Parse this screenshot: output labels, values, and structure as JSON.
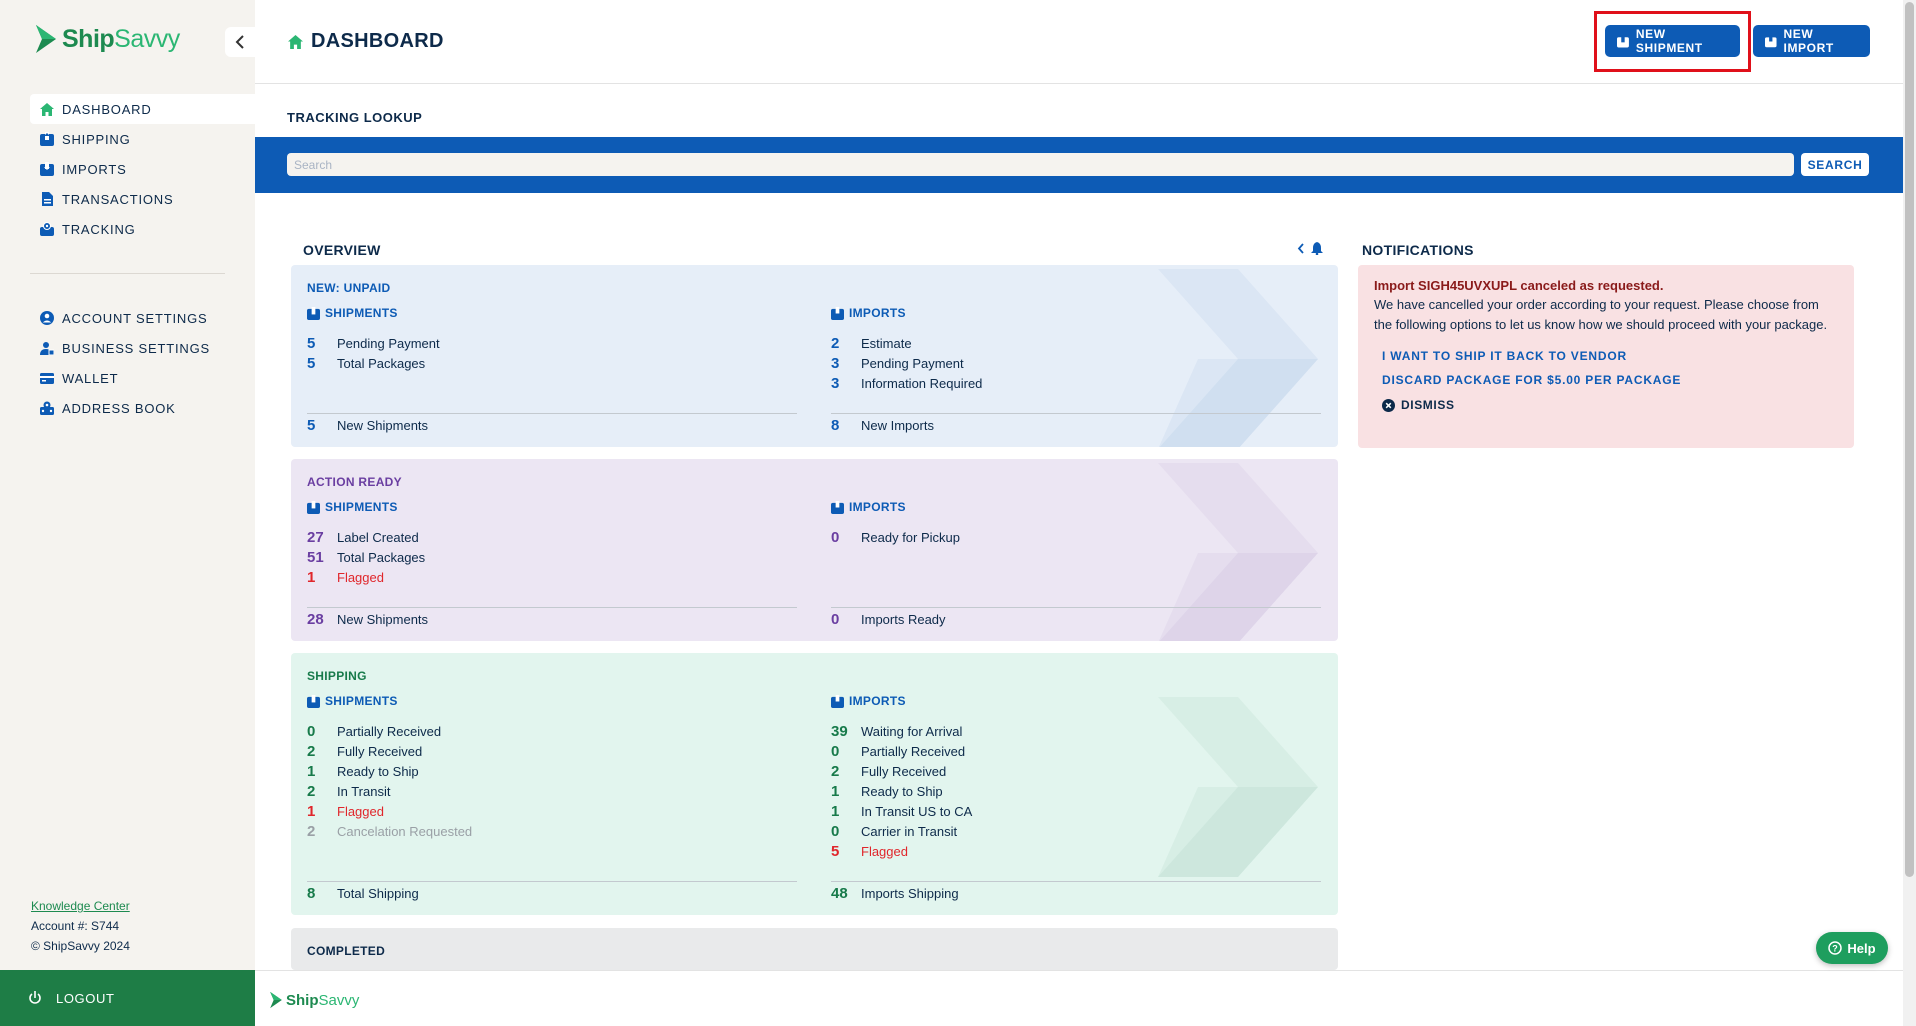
{
  "brand": {
    "logo_ship": "Ship",
    "logo_savvy": "Savvy",
    "accent": "#1e7d46",
    "primary": "#0d5bb5"
  },
  "sidebar": {
    "collapse_icon": "chevron-left-icon",
    "main_items": [
      {
        "label": "DASHBOARD",
        "icon": "home-icon",
        "active": true
      },
      {
        "label": "SHIPPING",
        "icon": "package-icon"
      },
      {
        "label": "IMPORTS",
        "icon": "import-icon"
      },
      {
        "label": "TRANSACTIONS",
        "icon": "document-icon"
      },
      {
        "label": "TRACKING",
        "icon": "tracking-icon"
      }
    ],
    "settings_items": [
      {
        "label": "ACCOUNT SETTINGS",
        "icon": "user-circle-icon"
      },
      {
        "label": "BUSINESS SETTINGS",
        "icon": "business-icon"
      },
      {
        "label": "WALLET",
        "icon": "wallet-icon"
      },
      {
        "label": "ADDRESS BOOK",
        "icon": "address-book-icon"
      }
    ],
    "knowledge_center": "Knowledge Center",
    "account": "Account #: S744",
    "copyright": "© ShipSavvy 2024",
    "logout": "LOGOUT"
  },
  "header": {
    "title": "DASHBOARD",
    "new_shipment": "NEW SHIPMENT",
    "new_import": "NEW IMPORT"
  },
  "tracking": {
    "title": "TRACKING LOOKUP",
    "placeholder": "Search",
    "search_button": "SEARCH"
  },
  "overview": {
    "title": "OVERVIEW",
    "cards": {
      "unpaid": {
        "label": "NEW: UNPAID",
        "shipments_head": "SHIPMENTS",
        "imports_head": "IMPORTS",
        "shipments": [
          {
            "num": "5",
            "label": "Pending Payment"
          },
          {
            "num": "5",
            "label": "Total Packages"
          }
        ],
        "imports": [
          {
            "num": "2",
            "label": "Estimate"
          },
          {
            "num": "3",
            "label": "Pending Payment"
          },
          {
            "num": "3",
            "label": "Information Required"
          }
        ],
        "ship_total": {
          "num": "5",
          "label": "New Shipments"
        },
        "import_total": {
          "num": "8",
          "label": "New Imports"
        }
      },
      "action": {
        "label": "ACTION READY",
        "shipments_head": "SHIPMENTS",
        "imports_head": "IMPORTS",
        "shipments": [
          {
            "num": "27",
            "label": "Label Created"
          },
          {
            "num": "51",
            "label": "Total Packages"
          },
          {
            "num": "1",
            "label": "Flagged",
            "flag": true
          }
        ],
        "imports": [
          {
            "num": "0",
            "label": "Ready for Pickup"
          }
        ],
        "ship_total": {
          "num": "28",
          "label": "New Shipments"
        },
        "import_total": {
          "num": "0",
          "label": "Imports Ready"
        }
      },
      "shipping": {
        "label": "SHIPPING",
        "shipments_head": "SHIPMENTS",
        "imports_head": "IMPORTS",
        "shipments": [
          {
            "num": "0",
            "label": "Partially Received"
          },
          {
            "num": "2",
            "label": "Fully Received"
          },
          {
            "num": "1",
            "label": "Ready to Ship"
          },
          {
            "num": "2",
            "label": "In Transit"
          },
          {
            "num": "1",
            "label": "Flagged",
            "flag": true
          },
          {
            "num": "2",
            "label": "Cancelation Requested",
            "muted": true
          }
        ],
        "imports": [
          {
            "num": "39",
            "label": "Waiting for Arrival"
          },
          {
            "num": "0",
            "label": "Partially Received"
          },
          {
            "num": "2",
            "label": "Fully Received"
          },
          {
            "num": "1",
            "label": "Ready to Ship"
          },
          {
            "num": "1",
            "label": "In Transit US to CA"
          },
          {
            "num": "0",
            "label": "Carrier in Transit"
          },
          {
            "num": "5",
            "label": "Flagged",
            "flag": true
          }
        ],
        "ship_total": {
          "num": "8",
          "label": "Total Shipping"
        },
        "import_total": {
          "num": "48",
          "label": "Imports Shipping"
        }
      },
      "completed": {
        "label": "COMPLETED"
      }
    }
  },
  "notifications": {
    "title": "NOTIFICATIONS",
    "item": {
      "headline": "Import SIGH45UVXUPL canceled as requested.",
      "body": "We have cancelled your order according to your request. Please choose from the following options to let us know how we should proceed with your package.",
      "link_ship_back": "I WANT TO SHIP IT BACK TO VENDOR",
      "link_discard": "DISCARD PACKAGE FOR $5.00 PER PACKAGE",
      "dismiss": "DISMISS"
    }
  },
  "help": {
    "label": "Help"
  }
}
